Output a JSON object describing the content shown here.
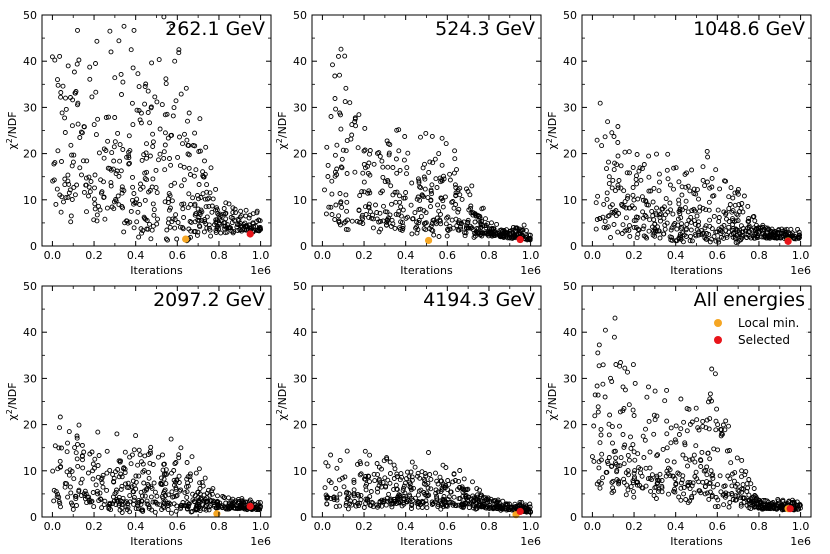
{
  "figure": {
    "xlabel": "Iterations",
    "ylabel_main": "χ",
    "ylabel_sup": "2",
    "ylabel_rest": "/NDF",
    "x_offset_label": "1e6",
    "legend": {
      "local_label": "Local min.",
      "selected_label": "Selected",
      "local_color": "#f5a623",
      "selected_color": "#e8141a"
    }
  },
  "chart_data": [
    {
      "type": "scatter",
      "title": "262.1 GeV",
      "xlabel": "Iterations",
      "ylabel": "χ²/NDF",
      "x_scale": "1e6",
      "xlim": [
        -0.05,
        1.05
      ],
      "ylim": [
        0,
        50
      ],
      "xticks": [
        "0.0",
        "0.2",
        "0.4",
        "0.6",
        "0.8",
        "1.0"
      ],
      "yticks": [
        "0",
        "10",
        "20",
        "30",
        "40",
        "50"
      ],
      "trend": {
        "x": [
          0.0,
          0.2,
          0.4,
          0.6,
          0.8,
          1.0
        ],
        "center": [
          22,
          17,
          14,
          12,
          5,
          4
        ],
        "spread": [
          27,
          25,
          24,
          24,
          4,
          2
        ]
      },
      "n_points": 520,
      "seed": 11,
      "local_min": {
        "x": 0.64,
        "y": 1.5
      },
      "selected": {
        "x": 0.95,
        "y": 2.6
      }
    },
    {
      "type": "scatter",
      "title": "524.3 GeV",
      "xlabel": "Iterations",
      "ylabel": "χ²/NDF",
      "x_scale": "1e6",
      "xlim": [
        -0.05,
        1.05
      ],
      "ylim": [
        0,
        50
      ],
      "xticks": [
        "0.0",
        "0.2",
        "0.4",
        "0.6",
        "0.8",
        "1.0"
      ],
      "yticks": [
        "0",
        "10",
        "20",
        "30",
        "40",
        "50"
      ],
      "trend": {
        "x": [
          0.0,
          0.2,
          0.4,
          0.6,
          0.8,
          1.0
        ],
        "center": [
          18,
          11,
          9,
          8,
          3,
          2
        ],
        "spread": [
          28,
          14,
          12,
          12,
          1.5,
          1.5
        ]
      },
      "n_points": 520,
      "seed": 23,
      "local_min": {
        "x": 0.51,
        "y": 1.2
      },
      "selected": {
        "x": 0.95,
        "y": 1.4
      }
    },
    {
      "type": "scatter",
      "title": "1048.6 GeV",
      "xlabel": "Iterations",
      "ylabel": "χ²/NDF",
      "x_scale": "1e6",
      "xlim": [
        -0.05,
        1.05
      ],
      "ylim": [
        0,
        50
      ],
      "xticks": [
        "0.0",
        "0.2",
        "0.4",
        "0.6",
        "0.8",
        "1.0"
      ],
      "yticks": [
        "0",
        "10",
        "20",
        "30",
        "40",
        "50"
      ],
      "trend": {
        "x": [
          0.0,
          0.2,
          0.4,
          0.6,
          0.8,
          1.0
        ],
        "center": [
          12,
          7,
          6,
          6,
          2.5,
          2
        ],
        "spread": [
          18,
          10,
          10,
          12,
          1.5,
          1
        ]
      },
      "n_points": 520,
      "seed": 37,
      "local_min": {
        "x": 0.94,
        "y": 1.1
      },
      "selected": {
        "x": 0.94,
        "y": 1.0
      }
    },
    {
      "type": "scatter",
      "title": "2097.2 GeV",
      "xlabel": "Iterations",
      "ylabel": "χ²/NDF",
      "x_scale": "1e6",
      "xlim": [
        -0.05,
        1.05
      ],
      "ylim": [
        0,
        50
      ],
      "xticks": [
        "0.0",
        "0.2",
        "0.4",
        "0.6",
        "0.8",
        "1.0"
      ],
      "yticks": [
        "0",
        "10",
        "20",
        "30",
        "40",
        "50"
      ],
      "trend": {
        "x": [
          0.0,
          0.2,
          0.4,
          0.6,
          0.8,
          1.0
        ],
        "center": [
          8,
          6,
          5,
          5,
          2.5,
          2
        ],
        "spread": [
          12,
          8,
          8,
          8,
          1.5,
          1
        ]
      },
      "n_points": 520,
      "seed": 41,
      "local_min": {
        "x": 0.79,
        "y": 0.7
      },
      "selected": {
        "x": 0.95,
        "y": 2.3
      }
    },
    {
      "type": "scatter",
      "title": "4194.3 GeV",
      "xlabel": "Iterations",
      "ylabel": "χ²/NDF",
      "x_scale": "1e6",
      "xlim": [
        -0.05,
        1.05
      ],
      "ylim": [
        0,
        50
      ],
      "xticks": [
        "0.0",
        "0.2",
        "0.4",
        "0.6",
        "0.8",
        "1.0"
      ],
      "yticks": [
        "0",
        "10",
        "20",
        "30",
        "40",
        "50"
      ],
      "trend": {
        "x": [
          0.0,
          0.2,
          0.4,
          0.6,
          0.8,
          1.0
        ],
        "center": [
          7,
          5,
          5,
          5,
          2.5,
          1.5
        ],
        "spread": [
          10,
          6,
          6,
          6,
          1.5,
          1
        ]
      },
      "n_points": 520,
      "seed": 53,
      "local_min": {
        "x": 0.93,
        "y": 0.5
      },
      "selected": {
        "x": 0.95,
        "y": 1.2
      }
    },
    {
      "type": "scatter",
      "title": "All energies",
      "xlabel": "Iterations",
      "ylabel": "χ²/NDF",
      "x_scale": "1e6",
      "xlim": [
        -0.05,
        1.05
      ],
      "ylim": [
        0,
        50
      ],
      "xticks": [
        "0.0",
        "0.2",
        "0.4",
        "0.6",
        "0.8",
        "1.0"
      ],
      "yticks": [
        "0",
        "10",
        "20",
        "30",
        "40",
        "50"
      ],
      "trend": {
        "x": [
          0.0,
          0.2,
          0.4,
          0.6,
          0.8,
          1.0
        ],
        "center": [
          18,
          12,
          10,
          10,
          2.5,
          2
        ],
        "spread": [
          22,
          14,
          12,
          14,
          1.5,
          1
        ]
      },
      "n_points": 520,
      "seed": 67,
      "legend": "upper-right",
      "local_min": {
        "x": 0.94,
        "y": 1.8
      },
      "selected": {
        "x": 0.95,
        "y": 1.8
      }
    }
  ]
}
